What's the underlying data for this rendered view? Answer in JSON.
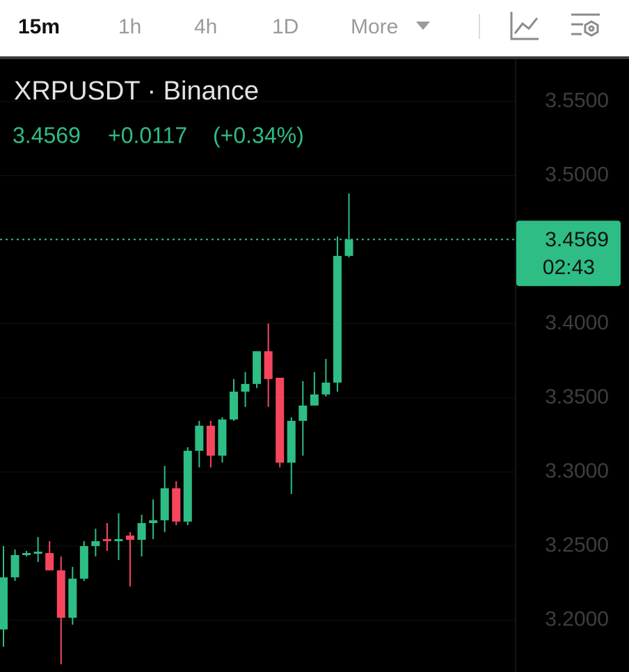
{
  "toolbar": {
    "intervals": [
      "15m",
      "1h",
      "4h",
      "1D"
    ],
    "more": "More"
  },
  "chart_data": {
    "type": "candlestick",
    "title": "XRPUSDT · Binance",
    "quote": {
      "price": "3.4569",
      "change": "+0.0117",
      "change_pct": "(+0.34%)"
    },
    "price_label": {
      "value": 3.4569,
      "label": "3.4569"
    },
    "countdown": "02:43",
    "up_color": "#2ebd85",
    "down_color": "#f6465d",
    "grid": true,
    "ylim": [
      3.165,
      3.5786
    ],
    "yticks": [
      {
        "value": 3.55,
        "label": "3.5500"
      },
      {
        "value": 3.5,
        "label": "3.5000"
      },
      {
        "value": 3.4,
        "label": "3.4000"
      },
      {
        "value": 3.35,
        "label": "3.3500"
      },
      {
        "value": 3.3,
        "label": "3.3000"
      },
      {
        "value": 3.25,
        "label": "3.2500"
      },
      {
        "value": 3.2,
        "label": "3.2000"
      }
    ],
    "open": [
      3.1937,
      3.2289,
      3.2439,
      3.2448,
      3.2453,
      3.2336,
      3.2016,
      3.228,
      3.25,
      3.2547,
      3.2533,
      3.2571,
      3.2542,
      3.2655,
      3.2674,
      3.289,
      3.2665,
      3.3143,
      3.3312,
      3.311,
      3.3354,
      3.3542,
      3.3594,
      3.3815,
      3.3636,
      3.3063,
      3.3345,
      3.3448,
      3.3523,
      3.3603,
      3.4458
    ],
    "high": [
      3.25,
      3.2477,
      3.2467,
      3.2561,
      3.2533,
      3.243,
      3.2359,
      3.2533,
      3.2617,
      3.2655,
      3.2721,
      3.2594,
      3.2711,
      3.2815,
      3.304,
      3.2937,
      3.3167,
      3.3345,
      3.3345,
      3.3369,
      3.3627,
      3.3674,
      3.3815,
      3.4002,
      3.3636,
      3.3369,
      3.3613,
      3.3674,
      3.3763,
      3.4589,
      3.488
    ],
    "low": [
      3.182,
      3.2265,
      3.243,
      3.2392,
      3.2336,
      3.1702,
      3.1969,
      3.2265,
      3.243,
      3.2467,
      3.2406,
      3.2228,
      3.243,
      3.2547,
      3.2594,
      3.2641,
      3.2641,
      3.3031,
      3.3031,
      3.3063,
      3.3345,
      3.3439,
      3.3566,
      3.3439,
      3.3031,
      3.2852,
      3.311,
      3.3448,
      3.3509,
      3.3542,
      3.4448
    ],
    "close": [
      3.2289,
      3.2439,
      3.2453,
      3.2462,
      3.2336,
      3.2016,
      3.228,
      3.25,
      3.2533,
      3.2533,
      3.2547,
      3.2542,
      3.2655,
      3.2674,
      3.289,
      3.2665,
      3.3143,
      3.3312,
      3.311,
      3.3354,
      3.3542,
      3.3594,
      3.3815,
      3.3627,
      3.3063,
      3.3345,
      3.3448,
      3.3523,
      3.3603,
      3.4458,
      3.4569
    ]
  }
}
